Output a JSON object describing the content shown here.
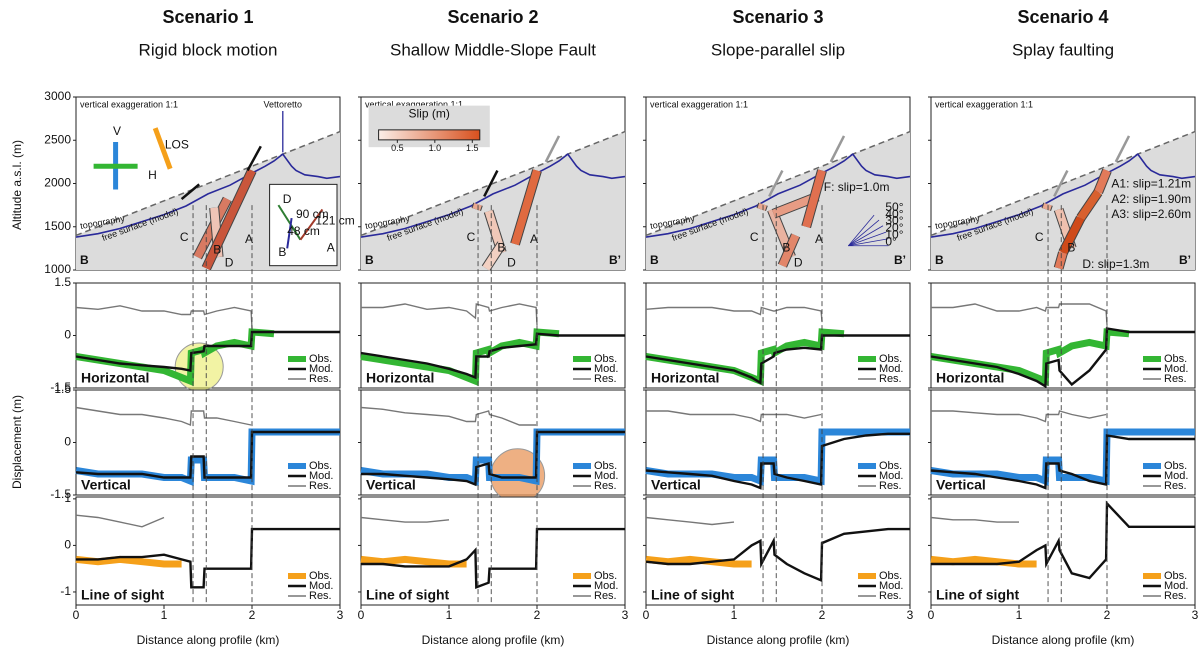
{
  "scenarios": [
    {
      "title": "Scenario 1",
      "subtitle": "Rigid block motion",
      "labels": [
        "LOS",
        "V",
        "H",
        "A",
        "B",
        "C",
        "D",
        "D",
        "90 cm",
        "121 cm",
        "48 cm",
        "B",
        "A"
      ]
    },
    {
      "title": "Scenario 2",
      "subtitle": "Shallow Middle-Slope Fault",
      "labels": [
        "A",
        "B",
        "C",
        "D"
      ],
      "slip_scale": {
        "title": "Slip (m)",
        "lim": [
          0.25,
          1.6
        ],
        "ticks": [
          0.5,
          {
            "value": 1,
            "label": "1.0"
          },
          1.5
        ]
      }
    },
    {
      "title": "Scenario 3",
      "subtitle": "Slope-parallel slip",
      "labels": [
        "A",
        "B",
        "C",
        "D",
        "F: slip=1.0m",
        "50°",
        "40°",
        "30°",
        "20°",
        "10°",
        "0°"
      ]
    },
    {
      "title": "Scenario 4",
      "subtitle": "Splay faulting",
      "labels": [
        "A1: slip=1.21m",
        "A2: slip=1.90m",
        "A3: slip=2.60m",
        "B",
        "C",
        "D: slip=1.3m"
      ]
    }
  ],
  "y_labels": {
    "profile": "Altitude a.s.l. (m)",
    "displacement": "Displacement (m)"
  },
  "x_label": "Distance along profile (km)",
  "xlim": [
    0,
    3
  ],
  "xticks": [
    0,
    1,
    2,
    3
  ],
  "fault_traces": [
    1.33,
    1.48,
    2.0
  ],
  "profile": {
    "ylim": [
      1000,
      3000
    ],
    "yticks": [
      1000,
      1500,
      2000,
      2500,
      3000
    ],
    "note": "vertical exaggeration 1:1",
    "start": "B",
    "end": "B’",
    "topography_label": "topography",
    "free_surface_label": "free surface (model)",
    "peak": "Vettoretto",
    "topography": {
      "x": [
        0,
        0.25,
        0.5,
        0.75,
        1,
        1.25,
        1.5,
        1.75,
        2,
        2.15,
        2.25,
        2.35,
        2.45,
        2.5,
        2.6,
        2.75,
        2.85,
        3
      ],
      "y": [
        1380,
        1420,
        1480,
        1560,
        1640,
        1740,
        1880,
        1980,
        2120,
        2200,
        2260,
        2340,
        2200,
        2150,
        2100,
        2080,
        2060,
        2080
      ]
    },
    "free_surface": {
      "x": [
        0,
        3
      ],
      "y": [
        1400,
        2600
      ]
    }
  },
  "legend": [
    "Obs.",
    "Mod.",
    "Res."
  ],
  "x": [
    0,
    0.25,
    0.5,
    0.75,
    1,
    1.2,
    1.3,
    1.31,
    1.45,
    1.46,
    1.6,
    1.8,
    1.99,
    2,
    2.25,
    2.5,
    2.75,
    3
  ],
  "rows": [
    {
      "name": "Horizontal",
      "ylim": [
        -1.5,
        1.5
      ],
      "yticks": [
        -1.5,
        0,
        1.5
      ],
      "obs_color": "#33b633",
      "observed": [
        -0.6,
        -0.7,
        -0.8,
        -0.9,
        -1.0,
        -1.2,
        -1.3,
        -0.5,
        -0.4,
        -0.5,
        -0.3,
        -0.2,
        -0.3,
        0.1,
        0.05,
        null,
        null,
        null
      ],
      "model": [
        [
          -0.6,
          -0.7,
          -0.8,
          -0.85,
          -0.9,
          -0.95,
          -1.0,
          -0.5,
          -0.45,
          -0.3,
          -0.3,
          -0.3,
          -0.3,
          0.1,
          0.1,
          0.1,
          0.1,
          0.1
        ],
        [
          -0.5,
          -0.6,
          -0.7,
          -0.8,
          -0.95,
          -1.1,
          -1.2,
          -0.6,
          -0.6,
          -0.45,
          -0.35,
          -0.3,
          -0.25,
          0.05,
          0.0,
          0.0,
          0.0,
          0.0
        ],
        [
          -0.6,
          -0.7,
          -0.8,
          -0.9,
          -1.0,
          -1.2,
          -1.35,
          -0.8,
          -0.6,
          -0.5,
          -0.4,
          -0.35,
          -0.4,
          0.0,
          0.0,
          0.0,
          0.0,
          0.0
        ],
        [
          -0.6,
          -0.7,
          -0.8,
          -0.9,
          -1.1,
          -1.3,
          -1.45,
          -0.8,
          -0.7,
          -1.0,
          -1.4,
          -1.0,
          -0.4,
          0.2,
          0.1,
          0.1,
          0.1,
          0.1
        ]
      ],
      "residual": [
        [
          0.8,
          0.75,
          0.85,
          0.7,
          0.7,
          0.6,
          0.6,
          0.7,
          0.7,
          0.6,
          0.7,
          0.8,
          0.7,
          0.2,
          null,
          null,
          null,
          null
        ],
        [
          0.8,
          0.8,
          0.9,
          0.75,
          0.8,
          0.7,
          0.5,
          0.9,
          0.8,
          0.7,
          0.8,
          0.9,
          0.8,
          0.3,
          null,
          null,
          null,
          null
        ],
        [
          0.75,
          0.8,
          0.8,
          0.8,
          0.7,
          0.7,
          0.6,
          0.8,
          0.7,
          0.7,
          0.8,
          0.8,
          0.7,
          0.4,
          null,
          null,
          null,
          null
        ],
        [
          0.8,
          0.8,
          0.9,
          0.7,
          0.7,
          0.8,
          0.7,
          0.8,
          0.8,
          0.9,
          0.9,
          0.9,
          0.7,
          0.3,
          null,
          null,
          null,
          null
        ]
      ]
    },
    {
      "name": "Vertical",
      "ylim": [
        -1.5,
        1.5
      ],
      "yticks": [
        -1.5,
        0,
        1.5
      ],
      "obs_color": "#2b86d9",
      "observed": [
        -0.8,
        -0.9,
        -0.9,
        -0.9,
        -1.0,
        -1.0,
        -1.1,
        -0.5,
        -0.5,
        -1.0,
        -1.0,
        -1.0,
        -1.1,
        0.3,
        0.3,
        0.3,
        0.3,
        0.3
      ],
      "model": [
        [
          -0.85,
          -0.9,
          -0.9,
          -0.9,
          -1.0,
          -1.0,
          -1.0,
          -0.4,
          -0.4,
          -1.0,
          -1.0,
          -1.0,
          -1.0,
          0.3,
          0.3,
          0.3,
          0.3,
          0.3
        ],
        [
          -0.9,
          -0.9,
          -0.95,
          -1.0,
          -1.05,
          -1.1,
          -1.2,
          -0.7,
          -0.6,
          -0.9,
          -1.0,
          -1.0,
          -1.0,
          0.3,
          0.3,
          0.3,
          0.3,
          0.3
        ],
        [
          -0.8,
          -0.85,
          -0.9,
          -0.95,
          -1.1,
          -1.2,
          -1.3,
          -0.6,
          -0.6,
          -0.9,
          -1.0,
          -1.1,
          -1.2,
          -0.1,
          0.1,
          0.2,
          0.25,
          0.25
        ],
        [
          -0.8,
          -0.85,
          -0.9,
          -1.0,
          -1.1,
          -1.2,
          -1.3,
          -0.6,
          -0.6,
          -0.8,
          -0.9,
          -1.1,
          -1.2,
          0.2,
          0.1,
          0.1,
          0.1,
          0.1
        ]
      ],
      "residual": [
        [
          1.0,
          0.9,
          0.8,
          0.8,
          0.7,
          0.6,
          0.5,
          0.9,
          0.9,
          0.7,
          0.7,
          0.6,
          0.5,
          null,
          null,
          null,
          null,
          null
        ],
        [
          1.0,
          0.95,
          0.85,
          0.8,
          0.75,
          0.6,
          0.6,
          0.8,
          0.9,
          0.8,
          0.7,
          0.5,
          0.5,
          null,
          null,
          null,
          null,
          null
        ],
        [
          0.9,
          0.9,
          0.8,
          0.8,
          0.8,
          0.7,
          0.6,
          0.8,
          0.8,
          0.8,
          0.8,
          0.7,
          0.8,
          null,
          null,
          null,
          null,
          null
        ],
        [
          0.9,
          0.9,
          0.85,
          0.8,
          0.8,
          0.7,
          0.6,
          0.8,
          0.8,
          0.9,
          0.8,
          0.7,
          0.8,
          null,
          null,
          null,
          null,
          null
        ]
      ]
    },
    {
      "name": "Line of sight",
      "ylim": [
        -1.28,
        1.04
      ],
      "yticks": [
        -1,
        0,
        1
      ],
      "obs_color": "#f5a01a",
      "observed": [
        -0.3,
        -0.35,
        -0.3,
        -0.35,
        -0.4,
        -0.4,
        null,
        null,
        null,
        null,
        null,
        null,
        null,
        null,
        null,
        null,
        null,
        null
      ],
      "model": [
        [
          -0.3,
          -0.3,
          -0.25,
          -0.25,
          -0.2,
          -0.3,
          -0.35,
          -0.9,
          -0.9,
          -0.5,
          -0.5,
          -0.5,
          -0.5,
          0.35,
          0.35,
          0.35,
          0.35,
          0.35
        ],
        [
          -0.4,
          -0.4,
          -0.45,
          -0.45,
          -0.45,
          -0.3,
          -0.1,
          -0.9,
          -0.8,
          -0.5,
          -0.5,
          -0.5,
          -0.5,
          0.35,
          0.35,
          0.35,
          0.35,
          0.35
        ],
        [
          -0.35,
          -0.4,
          -0.4,
          -0.35,
          -0.3,
          0.0,
          0.1,
          -0.4,
          0.1,
          -0.2,
          -0.4,
          -0.6,
          -0.75,
          0.05,
          0.25,
          0.3,
          0.35,
          0.35
        ],
        [
          -0.4,
          -0.4,
          -0.4,
          -0.4,
          -0.35,
          -0.1,
          0.0,
          -0.4,
          0.1,
          -0.1,
          -0.6,
          -0.7,
          -0.3,
          0.9,
          0.4,
          0.4,
          0.4,
          0.4
        ]
      ],
      "residual": [
        [
          0.65,
          0.6,
          0.5,
          0.4,
          0.6,
          null,
          null,
          null,
          null,
          null,
          null,
          null,
          null,
          null,
          null,
          null,
          null,
          null
        ],
        [
          0.6,
          0.55,
          0.5,
          0.5,
          0.55,
          null,
          null,
          null,
          null,
          null,
          null,
          null,
          null,
          null,
          null,
          null,
          null,
          null
        ],
        [
          0.6,
          0.55,
          0.5,
          0.45,
          0.5,
          null,
          null,
          null,
          null,
          null,
          null,
          null,
          null,
          null,
          null,
          null,
          null,
          null
        ],
        [
          0.6,
          0.55,
          0.55,
          0.5,
          0.5,
          null,
          null,
          null,
          null,
          null,
          null,
          null,
          null,
          null,
          null,
          null,
          null,
          null
        ]
      ]
    }
  ]
}
